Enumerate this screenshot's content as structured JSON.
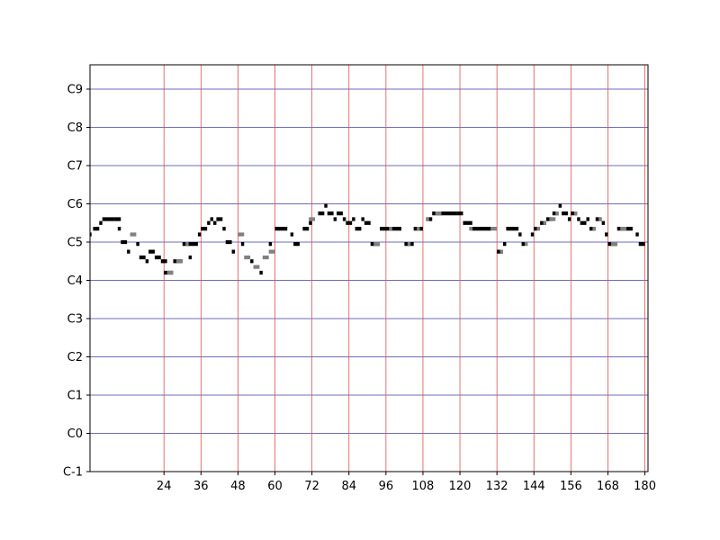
{
  "chart_data": {
    "type": "piano-roll",
    "title": "",
    "xlabel": "",
    "ylabel": "",
    "xlim": [
      0,
      181
    ],
    "ylim": [
      -1,
      9.4
    ],
    "x_ticks": [
      24,
      36,
      48,
      60,
      72,
      84,
      96,
      108,
      120,
      132,
      144,
      156,
      168,
      180
    ],
    "x_tick_labels": [
      "24",
      "36",
      "48",
      "60",
      "72",
      "84",
      "96",
      "108",
      "120",
      "132",
      "144",
      "156",
      "168",
      "180"
    ],
    "y_ticks": [
      -1,
      0,
      1,
      2,
      3,
      4,
      5,
      6,
      7,
      8,
      9
    ],
    "y_tick_labels": [
      "C-1",
      "C0",
      "C1",
      "C2",
      "C3",
      "C4",
      "C5",
      "C6",
      "C7",
      "C8",
      "C9"
    ],
    "grid": {
      "horizontal_color": "#3c3ca0",
      "vertical_color": "#e05050"
    },
    "note_height": 0.1,
    "series": [
      {
        "name": "notes-black",
        "color": "#000000",
        "notes": [
          [
            -0.5,
            5.2,
            1
          ],
          [
            1,
            5.35,
            2
          ],
          [
            3,
            5.5,
            1
          ],
          [
            4,
            5.6,
            4
          ],
          [
            8,
            5.6,
            2
          ],
          [
            9,
            5.35,
            1
          ],
          [
            10,
            5.0,
            2
          ],
          [
            12,
            4.75,
            1
          ],
          [
            15,
            4.95,
            1
          ],
          [
            16,
            4.6,
            2
          ],
          [
            18,
            4.5,
            1
          ],
          [
            19,
            4.75,
            2
          ],
          [
            21,
            4.6,
            2
          ],
          [
            23,
            4.5,
            2
          ],
          [
            24,
            4.2,
            3
          ],
          [
            27,
            4.5,
            3
          ],
          [
            30,
            4.95,
            3
          ],
          [
            32,
            4.6,
            1
          ],
          [
            33,
            4.95,
            2
          ],
          [
            35,
            5.2,
            1
          ],
          [
            36,
            5.35,
            2
          ],
          [
            38,
            5.5,
            1
          ],
          [
            39,
            5.6,
            1
          ],
          [
            40,
            5.5,
            1
          ],
          [
            41,
            5.6,
            2
          ],
          [
            43,
            5.35,
            1
          ],
          [
            44,
            5.0,
            2
          ],
          [
            46,
            4.75,
            1
          ],
          [
            49,
            4.95,
            1
          ],
          [
            52,
            4.5,
            1
          ],
          [
            55,
            4.2,
            1
          ],
          [
            58,
            4.95,
            1
          ],
          [
            60,
            5.35,
            4
          ],
          [
            65,
            5.2,
            1
          ],
          [
            66,
            4.95,
            2
          ],
          [
            69,
            5.35,
            2
          ],
          [
            71,
            5.5,
            1
          ],
          [
            74,
            5.75,
            2
          ],
          [
            76,
            5.95,
            1
          ],
          [
            77,
            5.75,
            2
          ],
          [
            79,
            5.6,
            1
          ],
          [
            80,
            5.75,
            2
          ],
          [
            82,
            5.6,
            1
          ],
          [
            83,
            5.5,
            2
          ],
          [
            85,
            5.6,
            1
          ],
          [
            86,
            5.35,
            2
          ],
          [
            88,
            5.6,
            1
          ],
          [
            89,
            5.5,
            2
          ],
          [
            91,
            4.95,
            3
          ],
          [
            94,
            5.35,
            4
          ],
          [
            98,
            5.35,
            3
          ],
          [
            102,
            4.95,
            3
          ],
          [
            105,
            5.35,
            3
          ],
          [
            109,
            5.6,
            2
          ],
          [
            111,
            5.75,
            8
          ],
          [
            119,
            5.75,
            2
          ],
          [
            121,
            5.5,
            3
          ],
          [
            124,
            5.35,
            6
          ],
          [
            132,
            4.75,
            2
          ],
          [
            134,
            4.95,
            1
          ],
          [
            135,
            5.35,
            4
          ],
          [
            139,
            5.2,
            1
          ],
          [
            140,
            4.95,
            1
          ],
          [
            143,
            5.2,
            1
          ],
          [
            144,
            5.35,
            1
          ],
          [
            146,
            5.5,
            2
          ],
          [
            148,
            5.6,
            2
          ],
          [
            150,
            5.75,
            2
          ],
          [
            152,
            5.95,
            1
          ],
          [
            153,
            5.75,
            2
          ],
          [
            155,
            5.6,
            1
          ],
          [
            156,
            5.75,
            2
          ],
          [
            158,
            5.6,
            1
          ],
          [
            159,
            5.5,
            2
          ],
          [
            161,
            5.6,
            1
          ],
          [
            162,
            5.35,
            2
          ],
          [
            164,
            5.6,
            2
          ],
          [
            166,
            5.5,
            1
          ],
          [
            167,
            5.2,
            1
          ],
          [
            168,
            4.95,
            3
          ],
          [
            171,
            5.35,
            4
          ],
          [
            175,
            5.35,
            1
          ],
          [
            177,
            5.2,
            1
          ],
          [
            178,
            4.95,
            2
          ]
        ]
      },
      {
        "name": "notes-gray",
        "color": "#808080",
        "notes": [
          [
            13,
            5.2,
            2
          ],
          [
            25,
            4.2,
            2
          ],
          [
            28,
            4.5,
            2
          ],
          [
            31,
            4.95,
            1
          ],
          [
            48,
            5.2,
            2
          ],
          [
            50,
            4.6,
            2
          ],
          [
            53,
            4.35,
            2
          ],
          [
            56,
            4.6,
            2
          ],
          [
            58,
            4.75,
            2
          ],
          [
            71,
            5.6,
            2
          ],
          [
            92,
            4.95,
            2
          ],
          [
            97,
            5.35,
            1
          ],
          [
            103,
            4.95,
            1
          ],
          [
            106,
            5.35,
            1
          ],
          [
            109,
            5.6,
            1
          ],
          [
            112,
            5.75,
            2
          ],
          [
            123,
            5.35,
            1
          ],
          [
            130,
            5.35,
            2
          ],
          [
            133,
            4.75,
            1
          ],
          [
            141,
            4.95,
            1
          ],
          [
            145,
            5.35,
            1
          ],
          [
            147,
            5.5,
            1
          ],
          [
            149,
            5.6,
            2
          ],
          [
            151,
            5.75,
            1
          ],
          [
            157,
            5.75,
            1
          ],
          [
            163,
            5.35,
            1
          ],
          [
            165,
            5.6,
            1
          ],
          [
            169,
            4.95,
            2
          ],
          [
            172,
            5.35,
            2
          ]
        ]
      }
    ]
  }
}
